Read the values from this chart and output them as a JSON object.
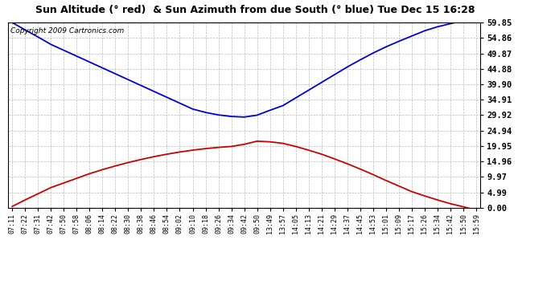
{
  "title": "Sun Altitude (° red)  & Sun Azimuth from due South (° blue) Tue Dec 15 16:28",
  "copyright": "Copyright 2009 Cartronics.com",
  "background_color": "#ffffff",
  "plot_bg_color": "#ffffff",
  "grid_color": "#bbbbbb",
  "blue_color": "#0000dd",
  "red_color": "#cc0000",
  "yticks": [
    0.0,
    4.99,
    9.97,
    14.96,
    19.95,
    24.94,
    29.92,
    34.91,
    39.9,
    44.88,
    49.87,
    54.86,
    59.85
  ],
  "ymin": 0.0,
  "ymax": 59.85,
  "x_labels": [
    "07:11",
    "07:22",
    "07:31",
    "07:42",
    "07:50",
    "07:58",
    "08:06",
    "08:14",
    "08:22",
    "08:30",
    "08:38",
    "08:46",
    "08:54",
    "09:02",
    "09:10",
    "09:18",
    "09:26",
    "09:34",
    "09:42",
    "09:50",
    "13:49",
    "13:57",
    "14:05",
    "14:13",
    "14:21",
    "14:29",
    "14:37",
    "14:45",
    "14:53",
    "15:01",
    "15:09",
    "15:17",
    "15:26",
    "15:34",
    "15:42",
    "15:50",
    "15:59"
  ],
  "blue_y": [
    59.85,
    57.5,
    55.2,
    52.8,
    50.9,
    49.0,
    47.1,
    45.2,
    43.3,
    41.4,
    39.5,
    37.6,
    35.7,
    33.8,
    31.9,
    30.8,
    30.0,
    29.5,
    29.3,
    29.92,
    31.5,
    33.0,
    35.5,
    38.0,
    40.5,
    43.0,
    45.5,
    47.8,
    50.0,
    52.0,
    53.8,
    55.5,
    57.2,
    58.5,
    59.5,
    60.5,
    62.0
  ],
  "red_y": [
    0.4,
    2.5,
    4.5,
    6.5,
    8.0,
    9.5,
    11.0,
    12.3,
    13.5,
    14.6,
    15.6,
    16.5,
    17.3,
    18.0,
    18.6,
    19.1,
    19.5,
    19.8,
    20.5,
    21.5,
    21.3,
    20.8,
    19.8,
    18.6,
    17.3,
    15.8,
    14.2,
    12.5,
    10.7,
    8.8,
    7.0,
    5.2,
    3.8,
    2.5,
    1.3,
    0.3,
    -0.8
  ]
}
